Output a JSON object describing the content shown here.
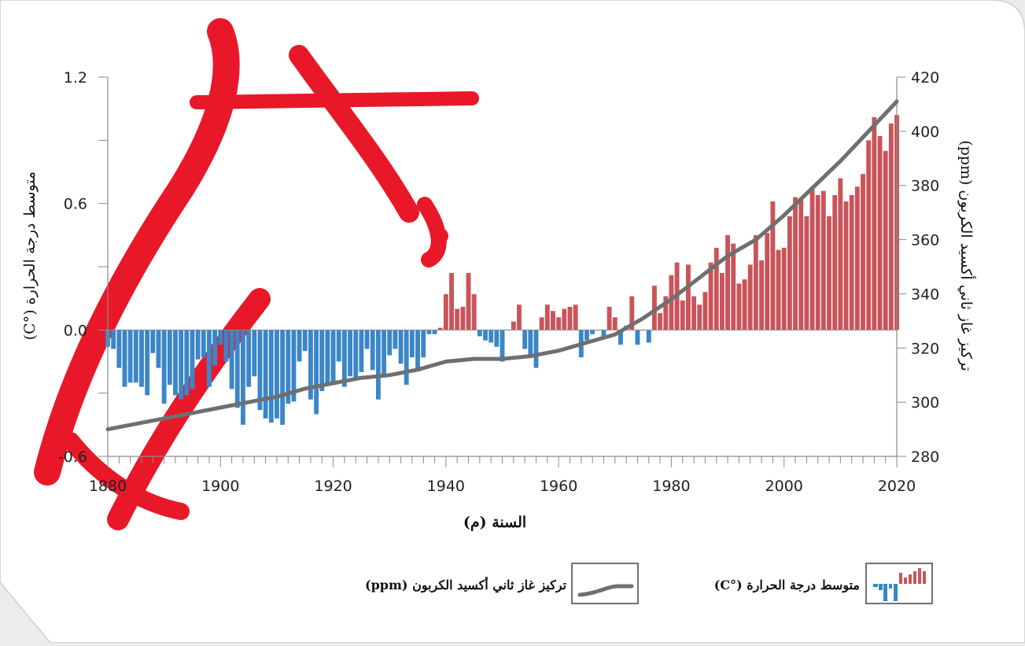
{
  "chart_data": {
    "type": "bar+line",
    "xlabel": "السنة (م)",
    "ylabel_left": "متوسط درجة الحرارة (°C)",
    "ylabel_right": "تركيز غاز ثاني أكسيد الكربون (ppm)",
    "xlim": [
      1880,
      2020
    ],
    "ylim_left": [
      -0.6,
      1.2
    ],
    "ylim_right": [
      280,
      420
    ],
    "x_ticks": [
      1880,
      1900,
      1920,
      1940,
      1960,
      1980,
      2000,
      2020
    ],
    "y_ticks_left": [
      "1.2",
      "0.6",
      "0.0",
      "-0.6"
    ],
    "y_ticks_right": [
      420,
      400,
      380,
      360,
      340,
      320,
      300,
      280
    ],
    "colors": {
      "positive": "#c9545a",
      "negative": "#3a86c8",
      "co2_line": "#6f6f6f",
      "axis": "#8a8a8a"
    },
    "series": [
      {
        "name": "متوسط درجة الحرارة (°C)",
        "kind": "bar",
        "x": [
          1880,
          1881,
          1882,
          1883,
          1884,
          1885,
          1886,
          1887,
          1888,
          1889,
          1890,
          1891,
          1892,
          1893,
          1894,
          1895,
          1896,
          1897,
          1898,
          1899,
          1900,
          1901,
          1902,
          1903,
          1904,
          1905,
          1906,
          1907,
          1908,
          1909,
          1910,
          1911,
          1912,
          1913,
          1914,
          1915,
          1916,
          1917,
          1918,
          1919,
          1920,
          1921,
          1922,
          1923,
          1924,
          1925,
          1926,
          1927,
          1928,
          1929,
          1930,
          1931,
          1932,
          1933,
          1934,
          1935,
          1936,
          1937,
          1938,
          1939,
          1940,
          1941,
          1942,
          1943,
          1944,
          1945,
          1946,
          1947,
          1948,
          1949,
          1950,
          1951,
          1952,
          1953,
          1954,
          1955,
          1956,
          1957,
          1958,
          1959,
          1960,
          1961,
          1962,
          1963,
          1964,
          1965,
          1966,
          1967,
          1968,
          1969,
          1970,
          1971,
          1972,
          1973,
          1974,
          1975,
          1976,
          1977,
          1978,
          1979,
          1980,
          1981,
          1982,
          1983,
          1984,
          1985,
          1986,
          1987,
          1988,
          1989,
          1990,
          1991,
          1992,
          1993,
          1994,
          1995,
          1996,
          1997,
          1998,
          1999,
          2000,
          2001,
          2002,
          2003,
          2004,
          2005,
          2006,
          2007,
          2008,
          2009,
          2010,
          2011,
          2012,
          2013,
          2014,
          2015,
          2016,
          2017,
          2018,
          2019,
          2020
        ],
        "values": [
          -0.08,
          -0.09,
          -0.18,
          -0.27,
          -0.25,
          -0.25,
          -0.27,
          -0.31,
          -0.11,
          -0.18,
          -0.35,
          -0.26,
          -0.31,
          -0.33,
          -0.31,
          -0.28,
          -0.14,
          -0.13,
          -0.27,
          -0.17,
          -0.07,
          -0.15,
          -0.28,
          -0.37,
          -0.45,
          -0.27,
          -0.22,
          -0.38,
          -0.42,
          -0.44,
          -0.42,
          -0.45,
          -0.35,
          -0.34,
          -0.15,
          -0.1,
          -0.33,
          -0.4,
          -0.29,
          -0.26,
          -0.26,
          -0.15,
          -0.27,
          -0.22,
          -0.23,
          -0.2,
          -0.09,
          -0.19,
          -0.33,
          -0.21,
          -0.12,
          -0.09,
          -0.16,
          -0.26,
          -0.13,
          -0.19,
          -0.13,
          -0.02,
          -0.02,
          0.01,
          0.17,
          0.27,
          0.1,
          0.11,
          0.27,
          0.17,
          -0.03,
          -0.05,
          -0.06,
          -0.08,
          -0.15,
          0.0,
          0.04,
          0.12,
          -0.09,
          -0.12,
          -0.18,
          0.06,
          0.12,
          0.09,
          0.06,
          0.1,
          0.11,
          0.12,
          -0.13,
          -0.05,
          -0.02,
          0.0,
          -0.03,
          0.11,
          0.06,
          -0.07,
          0.02,
          0.16,
          -0.07,
          0.0,
          -0.06,
          0.21,
          0.08,
          0.16,
          0.26,
          0.32,
          0.14,
          0.31,
          0.16,
          0.12,
          0.18,
          0.32,
          0.39,
          0.27,
          0.45,
          0.41,
          0.22,
          0.24,
          0.31,
          0.45,
          0.33,
          0.46,
          0.61,
          0.38,
          0.39,
          0.54,
          0.63,
          0.62,
          0.54,
          0.68,
          0.64,
          0.66,
          0.54,
          0.64,
          0.72,
          0.61,
          0.64,
          0.68,
          0.74,
          0.9,
          1.01,
          0.92,
          0.85,
          0.98,
          1.02
        ]
      },
      {
        "name": "تركيز غاز ثاني أكسيد الكربون (ppm)",
        "kind": "line",
        "x": [
          1880,
          1885,
          1890,
          1895,
          1900,
          1905,
          1910,
          1915,
          1920,
          1925,
          1930,
          1935,
          1940,
          1945,
          1950,
          1955,
          1960,
          1965,
          1970,
          1975,
          1980,
          1985,
          1990,
          1995,
          2000,
          2005,
          2010,
          2015,
          2020
        ],
        "values": [
          290,
          292,
          294,
          296,
          298,
          300,
          302,
          305,
          307,
          309,
          310,
          312,
          315,
          316,
          316,
          317,
          319,
          322,
          325,
          331,
          338,
          346,
          354,
          360,
          369,
          379,
          389,
          400,
          411
        ]
      }
    ],
    "legend": [
      {
        "label": "متوسط درجة الحرارة (°C)",
        "kind": "bar"
      },
      {
        "label": "تركيز غاز ثاني أكسيد الكربون (ppm)",
        "kind": "line"
      }
    ]
  }
}
